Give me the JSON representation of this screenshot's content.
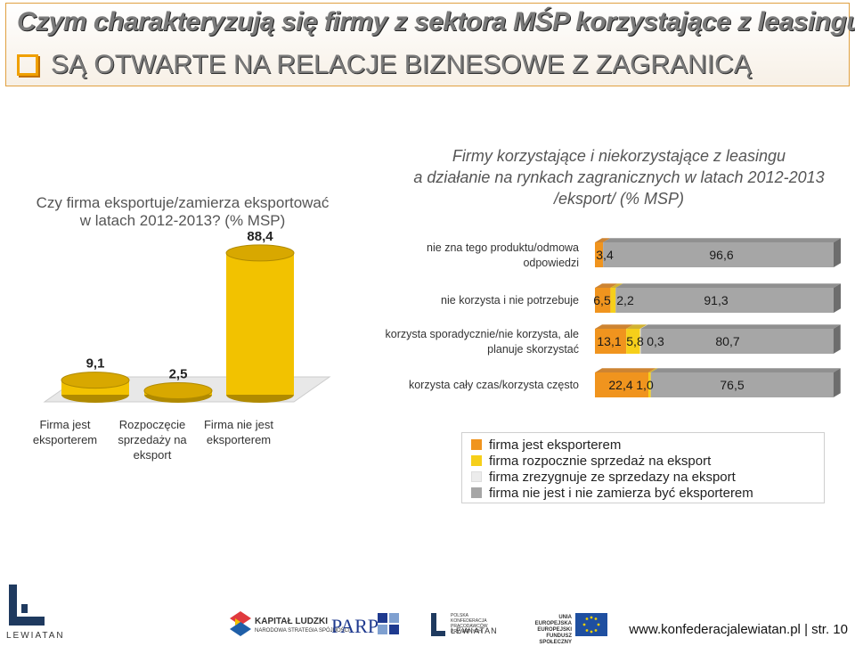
{
  "header": {
    "title": "Czym charakteryzują się firmy z sektora MŚP korzystające z leasingu?",
    "subtitle": "SĄ OTWARTE NA RELACJE BIZNESOWE Z ZAGRANICĄ"
  },
  "left_chart_title": "Czy firma eksportuje/zamierza eksportować w latach 2012-2013? (% MSP)",
  "right_chart_title_lines": [
    "Firmy korzystające i niekorzystające z leasingu",
    "a działanie na rynkach zagranicznych w latach 2012-2013",
    "/eksport/ (% MSP)"
  ],
  "left_category_labels": [
    "Firma jest eksporterem",
    "Rozpoczęcie sprzedaży na eksport",
    "Firma nie jest eksporterem"
  ],
  "legend": [
    "firma jest eksporterem",
    "firma rozpocznie sprzedaż na eksport",
    "firma zrezygnuje ze sprzedazy na eksport",
    "firma nie jest i nie zamierza być eksporterem"
  ],
  "colors": {
    "orange": "#f0941e",
    "yellow": "#f6cf1a",
    "light": "#ececec",
    "gray": "#a6a6a6",
    "gold": "#f2c200",
    "header_border": "#e0a040"
  },
  "footer": {
    "url": "www.konfederacjalewiatan.pl",
    "page": "str. 10",
    "logo_main": "LEWIATAN",
    "logo_texts": [
      "KAPITAŁ LUDZKI",
      "NARODOWA STRATEGIA SPÓJNOŚCI",
      "PARP",
      "POLSKA KONFEDERACJA PRACODAWCÓW PRYWATNYCH",
      "LEWIATAN",
      "UNIA EUROPEJSKA",
      "EUROPEJSKI",
      "FUNDUSZ SPOŁECZNY"
    ]
  },
  "chart_data": [
    {
      "type": "bar",
      "title": "Czy firma eksportuje/zamierza eksportować w latach 2012-2013? (% MSP)",
      "categories": [
        "Firma jest eksporterem",
        "Rozpoczęcie sprzedaży na eksport",
        "Firma nie jest eksporterem"
      ],
      "values": [
        9.1,
        2.5,
        88.4
      ],
      "value_labels": [
        "9,1",
        "2,5",
        "88,4"
      ]
    },
    {
      "type": "bar",
      "orientation": "horizontal",
      "stacked": true,
      "title": "Firmy korzystające i niekorzystające z leasingu a działanie na rynkach zagranicznych w latach 2012-2013 /eksport/ (% MSP)",
      "categories": [
        "nie zna tego produktu/odmowa odpowiedzi",
        "nie korzysta i nie potrzebuje",
        "korzysta sporadycznie/nie korzysta, ale planuje skorzystać",
        "korzysta cały czas/korzysta często"
      ],
      "series": [
        {
          "name": "firma jest eksporterem",
          "values": [
            3.4,
            6.5,
            13.1,
            22.4
          ],
          "labels": [
            "3,4",
            "6,5",
            "13,1",
            "22,4"
          ]
        },
        {
          "name": "firma rozpocznie sprzedaż na eksport",
          "values": [
            0,
            2.2,
            5.8,
            1.0
          ],
          "labels": [
            "",
            "2,2",
            "5,8",
            "1,0"
          ]
        },
        {
          "name": "firma zrezygnuje ze sprzedazy na eksport",
          "values": [
            0,
            0,
            0.3,
            0
          ],
          "labels": [
            "",
            "",
            "0,3",
            ""
          ]
        },
        {
          "name": "firma nie jest i nie zamierza być eksporterem",
          "values": [
            96.6,
            91.3,
            80.7,
            76.5
          ],
          "labels": [
            "96,6",
            "91,3",
            "80,7",
            "76,5"
          ]
        }
      ],
      "legend_position": "bottom"
    }
  ]
}
